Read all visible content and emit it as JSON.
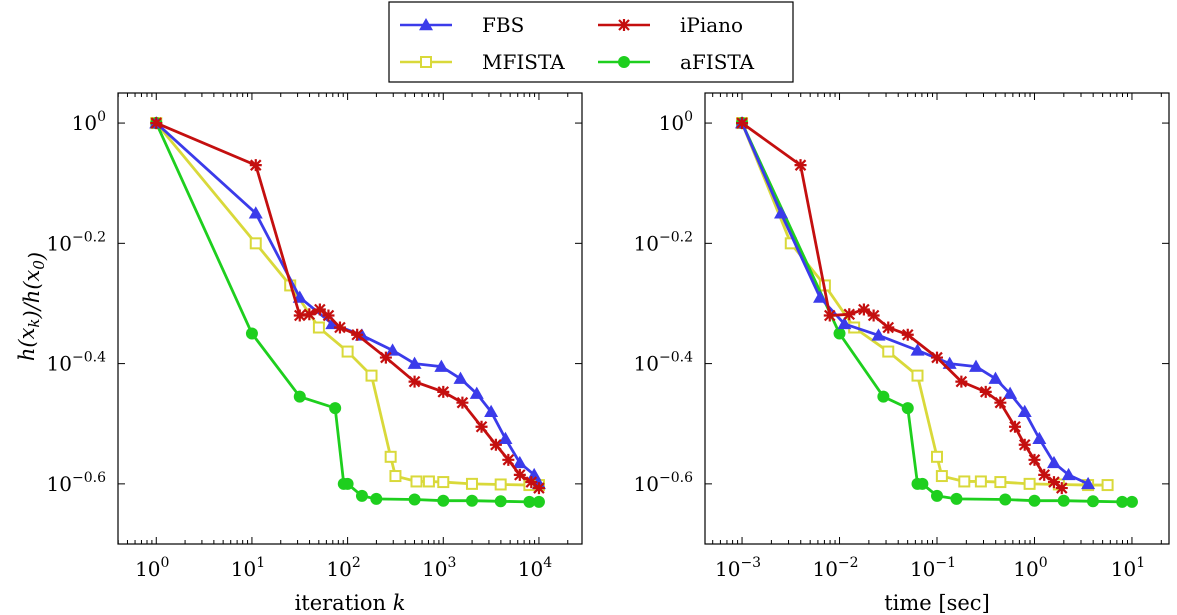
{
  "legend": {
    "placement": "top-center",
    "entries": [
      {
        "name": "FBS",
        "color": "#3b3bea",
        "marker": "triangle"
      },
      {
        "name": "iPiano",
        "color": "#c40f0f",
        "marker": "star"
      },
      {
        "name": "MFISTA",
        "color": "#d9d93a",
        "marker": "square"
      },
      {
        "name": "aFISTA",
        "color": "#1ecf1e",
        "marker": "circle"
      }
    ]
  },
  "chart_data": [
    {
      "type": "line",
      "xscale": "log",
      "yscale": "log",
      "xlabel": "iteration k",
      "ylabel": "h(x_k)/h(x_0)",
      "xticks": [
        1,
        10,
        100,
        1000,
        10000
      ],
      "xtick_labels": [
        {
          "base": "10",
          "exp": "0"
        },
        {
          "base": "10",
          "exp": "1"
        },
        {
          "base": "10",
          "exp": "2"
        },
        {
          "base": "10",
          "exp": "3"
        },
        {
          "base": "10",
          "exp": "4"
        }
      ],
      "yticks": [
        0,
        -0.2,
        -0.4,
        -0.6
      ],
      "ytick_labels": [
        {
          "base": "10",
          "exp": "0"
        },
        {
          "base": "10",
          "exp": "−0.2"
        },
        {
          "base": "10",
          "exp": "−0.4"
        },
        {
          "base": "10",
          "exp": "−0.6"
        }
      ],
      "xlim_log10": [
        -0.4,
        4.45
      ],
      "ylim_log10": [
        -0.7,
        0.05
      ],
      "grid": false,
      "series": [
        {
          "name": "FBS",
          "x_log10": [
            0,
            1.04,
            1.5,
            1.84,
            2.15,
            2.47,
            2.7,
            2.98,
            3.18,
            3.35,
            3.5,
            3.65,
            3.8,
            3.95,
            4.0
          ],
          "y_log10": [
            0,
            -0.15,
            -0.29,
            -0.334,
            -0.353,
            -0.378,
            -0.4,
            -0.405,
            -0.425,
            -0.45,
            -0.48,
            -0.525,
            -0.565,
            -0.585,
            -0.6
          ]
        },
        {
          "name": "iPiano",
          "x_log10": [
            0,
            1.04,
            1.5,
            1.6,
            1.71,
            1.8,
            1.92,
            2.1,
            2.4,
            2.7,
            3.0,
            3.2,
            3.4,
            3.55,
            3.68,
            3.8,
            3.92,
            4.0
          ],
          "y_log10": [
            0,
            -0.07,
            -0.32,
            -0.318,
            -0.31,
            -0.32,
            -0.34,
            -0.352,
            -0.39,
            -0.43,
            -0.447,
            -0.465,
            -0.505,
            -0.535,
            -0.56,
            -0.585,
            -0.597,
            -0.607
          ]
        },
        {
          "name": "MFISTA",
          "x_log10": [
            0,
            1.04,
            1.4,
            1.7,
            2.0,
            2.25,
            2.45,
            2.5,
            2.72,
            2.85,
            3.0,
            3.3,
            3.6,
            3.9,
            4.0
          ],
          "y_log10": [
            0,
            -0.2,
            -0.27,
            -0.34,
            -0.38,
            -0.42,
            -0.555,
            -0.587,
            -0.596,
            -0.596,
            -0.597,
            -0.6,
            -0.601,
            -0.602,
            -0.602
          ]
        },
        {
          "name": "aFISTA",
          "x_log10": [
            0,
            1.0,
            1.5,
            1.87,
            1.96,
            2.0,
            2.15,
            2.3,
            2.7,
            3.0,
            3.3,
            3.6,
            3.9,
            4.0
          ],
          "y_log10": [
            0,
            -0.35,
            -0.455,
            -0.474,
            -0.6,
            -0.6,
            -0.62,
            -0.625,
            -0.626,
            -0.628,
            -0.628,
            -0.629,
            -0.63,
            -0.63
          ]
        }
      ]
    },
    {
      "type": "line",
      "xscale": "log",
      "yscale": "log",
      "xlabel": "time [sec]",
      "ylabel": "",
      "xticks": [
        0.001,
        0.01,
        0.1,
        1,
        10
      ],
      "xtick_labels": [
        {
          "base": "10",
          "exp": "−3"
        },
        {
          "base": "10",
          "exp": "−2"
        },
        {
          "base": "10",
          "exp": "−1"
        },
        {
          "base": "10",
          "exp": "0"
        },
        {
          "base": "10",
          "exp": "1"
        }
      ],
      "yticks": [
        0,
        -0.2,
        -0.4,
        -0.6
      ],
      "ytick_labels": [
        {
          "base": "10",
          "exp": "0"
        },
        {
          "base": "10",
          "exp": "−0.2"
        },
        {
          "base": "10",
          "exp": "−0.4"
        },
        {
          "base": "10",
          "exp": "−0.6"
        }
      ],
      "xlim_log10": [
        -3.38,
        1.38
      ],
      "ylim_log10": [
        -0.7,
        0.05
      ],
      "grid": false,
      "series": [
        {
          "name": "FBS",
          "x_log10": [
            -3.0,
            -2.6,
            -2.2,
            -1.95,
            -1.6,
            -1.2,
            -0.87,
            -0.6,
            -0.4,
            -0.25,
            -0.1,
            0.05,
            0.2,
            0.35,
            0.55
          ],
          "y_log10": [
            0,
            -0.15,
            -0.29,
            -0.334,
            -0.353,
            -0.378,
            -0.4,
            -0.405,
            -0.425,
            -0.45,
            -0.48,
            -0.525,
            -0.565,
            -0.585,
            -0.6
          ]
        },
        {
          "name": "iPiano",
          "x_log10": [
            -3.0,
            -2.4,
            -2.1,
            -1.9,
            -1.75,
            -1.65,
            -1.5,
            -1.3,
            -1.0,
            -0.75,
            -0.5,
            -0.35,
            -0.2,
            -0.1,
            0.0,
            0.1,
            0.2,
            0.28
          ],
          "y_log10": [
            0,
            -0.07,
            -0.32,
            -0.318,
            -0.31,
            -0.32,
            -0.34,
            -0.352,
            -0.39,
            -0.43,
            -0.447,
            -0.465,
            -0.505,
            -0.535,
            -0.56,
            -0.585,
            -0.597,
            -0.607
          ]
        },
        {
          "name": "MFISTA",
          "x_log10": [
            -3.0,
            -2.5,
            -2.15,
            -1.85,
            -1.5,
            -1.2,
            -1.0,
            -0.95,
            -0.72,
            -0.55,
            -0.35,
            -0.05,
            0.25,
            0.55,
            0.75
          ],
          "y_log10": [
            0,
            -0.2,
            -0.27,
            -0.34,
            -0.38,
            -0.42,
            -0.555,
            -0.587,
            -0.596,
            -0.596,
            -0.597,
            -0.6,
            -0.601,
            -0.602,
            -0.602
          ]
        },
        {
          "name": "aFISTA",
          "x_log10": [
            -3.0,
            -2.0,
            -1.55,
            -1.3,
            -1.2,
            -1.15,
            -1.0,
            -0.8,
            -0.3,
            0.0,
            0.3,
            0.6,
            0.9,
            1.0
          ],
          "y_log10": [
            0,
            -0.35,
            -0.455,
            -0.474,
            -0.6,
            -0.6,
            -0.62,
            -0.625,
            -0.626,
            -0.628,
            -0.628,
            -0.629,
            -0.63,
            -0.63
          ]
        }
      ]
    }
  ]
}
